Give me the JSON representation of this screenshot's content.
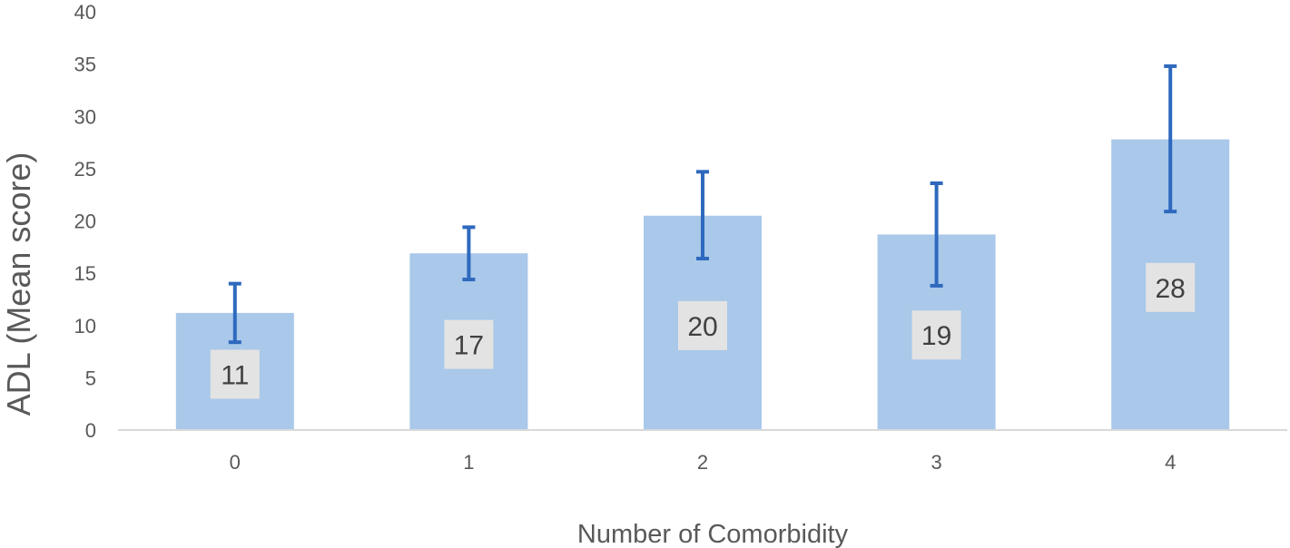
{
  "chart_data": {
    "type": "bar",
    "title": "",
    "xlabel": "Number of Comorbidity",
    "ylabel": "ADL (Mean score)",
    "categories": [
      "0",
      "1",
      "2",
      "3",
      "4"
    ],
    "values": [
      11.2,
      16.9,
      20.5,
      18.7,
      27.8
    ],
    "data_labels": [
      "11",
      "17",
      "20",
      "19",
      "28"
    ],
    "error_low": [
      8.4,
      14.4,
      16.4,
      13.8,
      20.9
    ],
    "error_high": [
      14.0,
      19.4,
      24.7,
      23.6,
      34.8
    ],
    "ylim": [
      0,
      40
    ],
    "yticks": [
      0,
      5,
      10,
      15,
      20,
      25,
      30,
      35,
      40
    ],
    "grid": false,
    "legend": "none",
    "colors": {
      "bar": "#a9c8ea",
      "error_bar": "#2e69be",
      "label_box": "#e3e3e3",
      "axis_line": "#d9d9d9",
      "text": "#595959"
    }
  }
}
